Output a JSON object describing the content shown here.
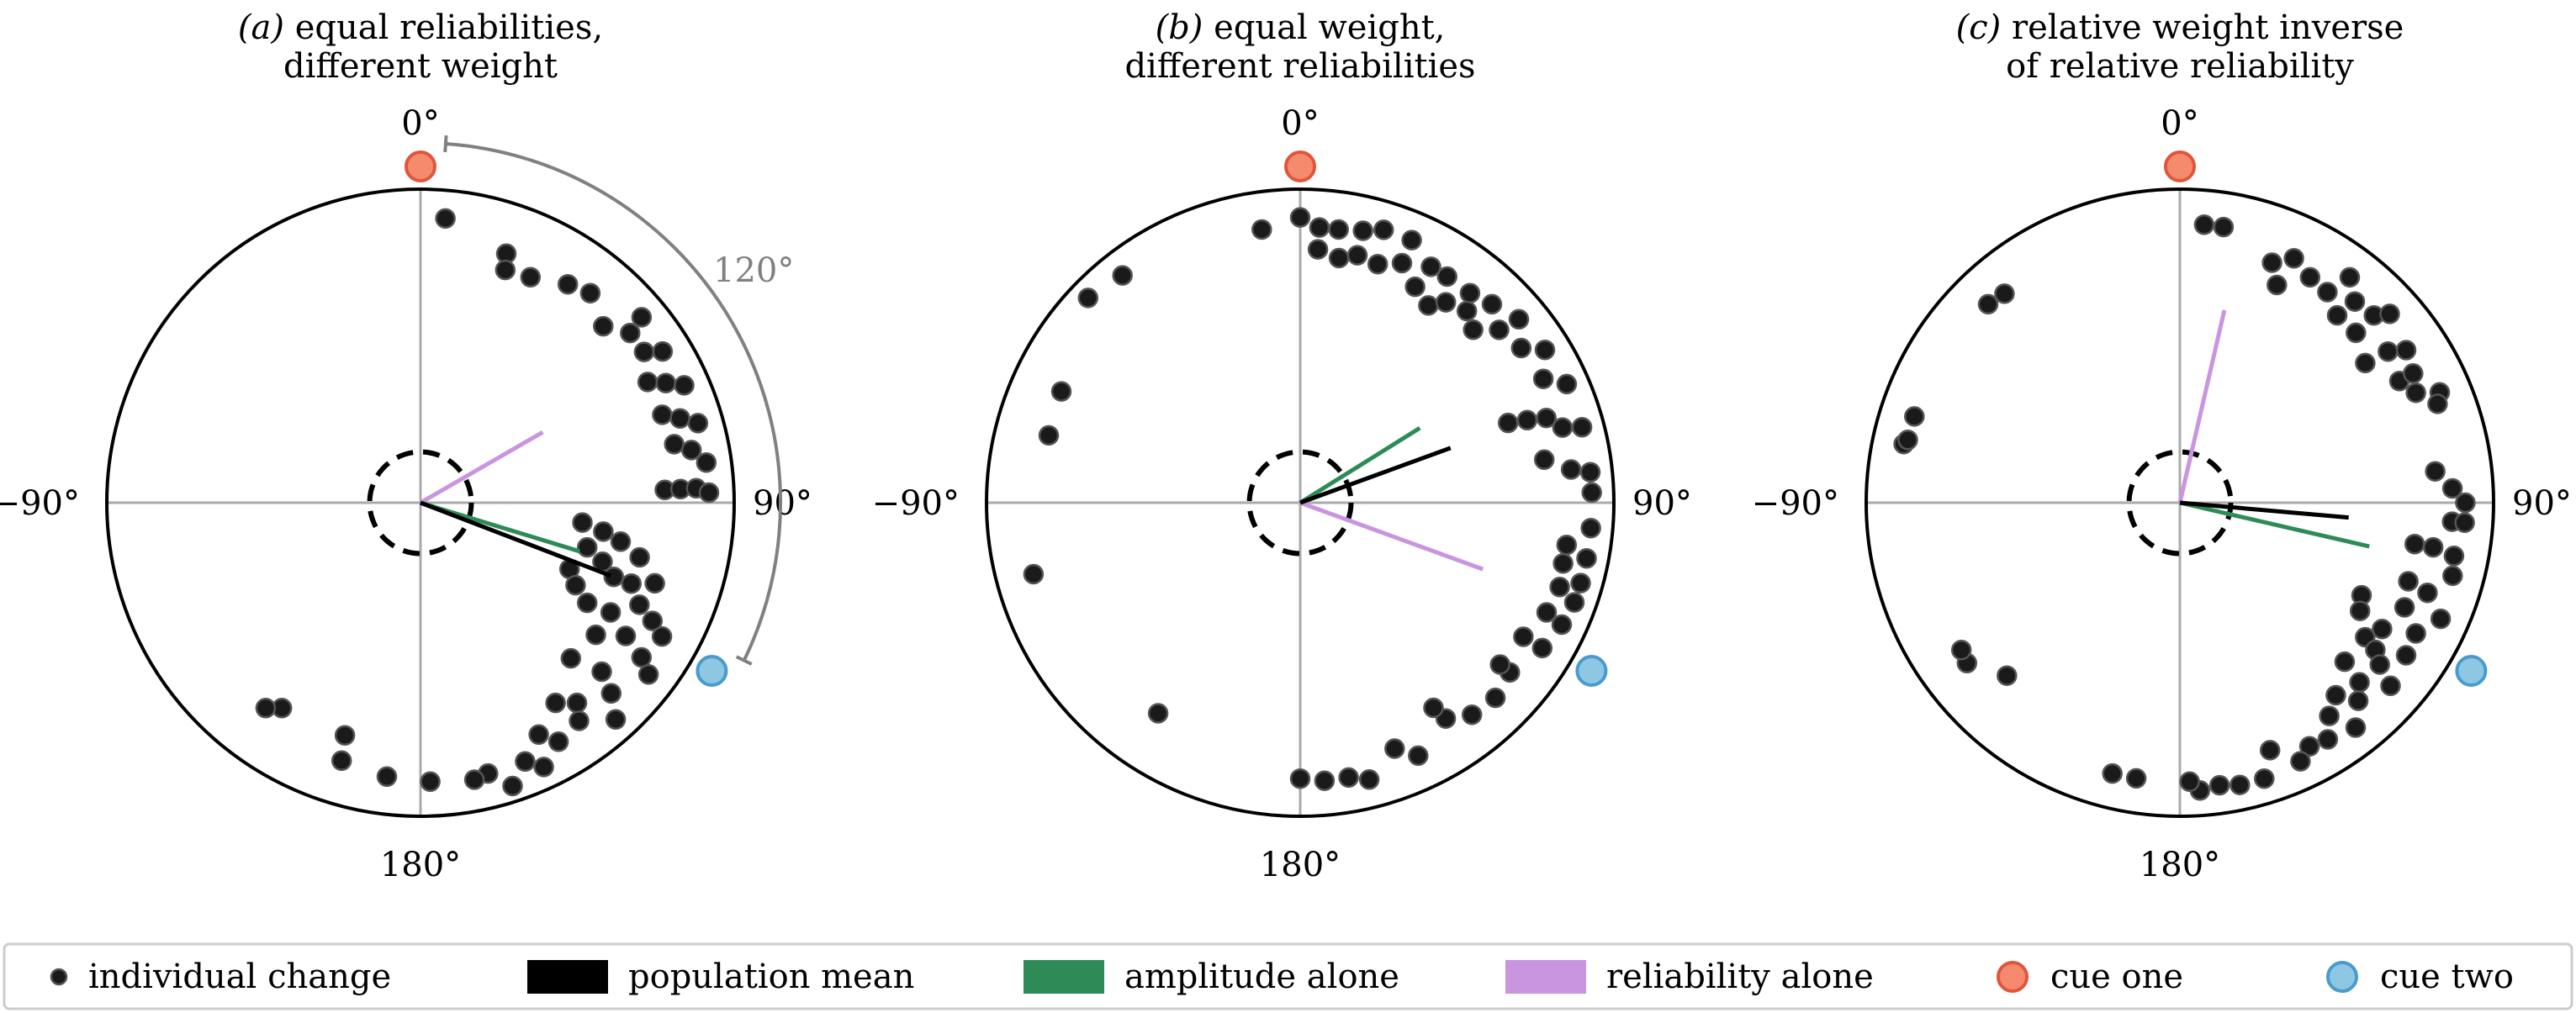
{
  "colors": {
    "dot": "#1a1a1a",
    "population_mean": "#000000",
    "amplitude_alone": "#2e8b57",
    "reliability_alone": "#c995e0",
    "cue_one_fill": "#f58a6f",
    "cue_one_edge": "#e0563b",
    "cue_two_fill": "#8ec7e3",
    "cue_two_edge": "#4a9bcb",
    "axis": "#aaaaaa",
    "circle": "#000000",
    "annotation": "#808080"
  },
  "legend": {
    "items": [
      {
        "key": "individual_change",
        "label": "individual change",
        "icon": "dot-icon"
      },
      {
        "key": "population_mean",
        "label": "population mean",
        "icon": "line-swatch"
      },
      {
        "key": "amplitude_alone",
        "label": "amplitude alone",
        "icon": "line-swatch"
      },
      {
        "key": "reliability_alone",
        "label": "reliability alone",
        "icon": "line-swatch"
      },
      {
        "key": "cue_one",
        "label": "cue one",
        "icon": "circle-icon"
      },
      {
        "key": "cue_two",
        "label": "cue two",
        "icon": "circle-icon"
      }
    ]
  },
  "chart_data": [
    {
      "type": "polar-scatter",
      "title_prefix": "(a)",
      "title_line1": "equal reliabilities,",
      "title_line2": "different weight",
      "tick_labels": {
        "top": "0°",
        "right": "90°",
        "bottom": "180°",
        "left": "−90°"
      },
      "cue_one_angle": 0,
      "cue_two_angle": 120,
      "annotation": {
        "label": "120°",
        "from_angle": 0,
        "to_angle": 120
      },
      "dashed_circle_radius": 0.15,
      "vectors": {
        "population_mean": {
          "angle": 111,
          "length": 0.65
        },
        "amplitude_alone": {
          "angle": 107,
          "length": 0.53
        },
        "reliability_alone": {
          "angle": 60,
          "length": 0.45
        }
      },
      "points": [
        [
          5,
          0.91
        ],
        [
          19,
          0.84
        ],
        [
          20,
          0.79
        ],
        [
          26,
          0.8
        ],
        [
          34,
          0.84
        ],
        [
          39,
          0.86
        ],
        [
          46,
          0.81
        ],
        [
          51,
          0.86
        ],
        [
          50,
          0.92
        ],
        [
          56,
          0.86
        ],
        [
          58,
          0.91
        ],
        [
          62,
          0.82
        ],
        [
          64,
          0.87
        ],
        [
          66,
          0.92
        ],
        [
          70,
          0.82
        ],
        [
          72,
          0.87
        ],
        [
          74,
          0.92
        ],
        [
          77,
          0.83
        ],
        [
          79,
          0.88
        ],
        [
          82,
          0.92
        ],
        [
          87,
          0.78
        ],
        [
          87,
          0.83
        ],
        [
          87,
          0.88
        ],
        [
          88,
          0.92
        ],
        [
          97,
          0.52
        ],
        [
          99,
          0.59
        ],
        [
          101,
          0.65
        ],
        [
          104,
          0.72
        ],
        [
          105,
          0.55
        ],
        [
          108,
          0.61
        ],
        [
          109,
          0.79
        ],
        [
          111,
          0.66
        ],
        [
          111,
          0.72
        ],
        [
          114,
          0.52
        ],
        [
          115,
          0.77
        ],
        [
          117,
          0.83
        ],
        [
          118,
          0.56
        ],
        [
          119,
          0.88
        ],
        [
          120,
          0.7
        ],
        [
          121,
          0.62
        ],
        [
          123,
          0.78
        ],
        [
          125,
          0.86
        ],
        [
          127,
          0.7
        ],
        [
          127,
          0.91
        ],
        [
          133,
          0.79
        ],
        [
          135,
          0.86
        ],
        [
          136,
          0.69
        ],
        [
          138,
          0.93
        ],
        [
          142,
          0.81
        ],
        [
          144,
          0.86
        ],
        [
          146,
          0.77
        ],
        [
          150,
          0.88
        ],
        [
          153,
          0.83
        ],
        [
          155,
          0.93
        ],
        [
          158,
          0.89
        ],
        [
          162,
          0.95
        ],
        [
          166,
          0.89
        ],
        [
          169,
          0.9
        ],
        [
          178,
          0.89
        ],
        [
          187,
          0.88
        ],
        [
          197,
          0.86
        ],
        [
          198,
          0.78
        ],
        [
          214,
          0.79
        ],
        [
          217,
          0.82
        ]
      ]
    },
    {
      "type": "polar-scatter",
      "title_prefix": "(b)",
      "title_line1": "equal weight,",
      "title_line2": "different reliabilities",
      "tick_labels": {
        "top": "0°",
        "right": "90°",
        "bottom": "180°",
        "left": "−90°"
      },
      "cue_one_angle": 0,
      "cue_two_angle": 120,
      "dashed_circle_radius": 0.15,
      "vectors": {
        "population_mean": {
          "angle": 70,
          "length": 0.51
        },
        "amplitude_alone": {
          "angle": 58,
          "length": 0.45
        },
        "reliability_alone": {
          "angle": 110,
          "length": 0.62
        }
      },
      "points": [
        [
          0,
          0.91
        ],
        [
          4,
          0.88
        ],
        [
          8,
          0.88
        ],
        [
          13,
          0.89
        ],
        [
          17,
          0.91
        ],
        [
          23,
          0.91
        ],
        [
          4,
          0.81
        ],
        [
          9,
          0.79
        ],
        [
          13,
          0.81
        ],
        [
          18,
          0.8
        ],
        [
          23,
          0.83
        ],
        [
          29,
          0.86
        ],
        [
          33,
          0.86
        ],
        [
          39,
          0.86
        ],
        [
          44,
          0.88
        ],
        [
          50,
          0.91
        ],
        [
          28,
          0.78
        ],
        [
          33,
          0.75
        ],
        [
          36,
          0.79
        ],
        [
          41,
          0.81
        ],
        [
          45,
          0.78
        ],
        [
          49,
          0.84
        ],
        [
          55,
          0.86
        ],
        [
          58,
          0.92
        ],
        [
          63,
          0.87
        ],
        [
          66,
          0.93
        ],
        [
          69,
          0.71
        ],
        [
          70,
          0.77
        ],
        [
          71,
          0.83
        ],
        [
          74,
          0.87
        ],
        [
          75,
          0.93
        ],
        [
          80,
          0.79
        ],
        [
          83,
          0.87
        ],
        [
          84,
          0.93
        ],
        [
          88,
          0.93
        ],
        [
          95,
          0.93
        ],
        [
          99,
          0.86
        ],
        [
          101,
          0.93
        ],
        [
          103,
          0.86
        ],
        [
          106,
          0.93
        ],
        [
          108,
          0.87
        ],
        [
          110,
          0.93
        ],
        [
          114,
          0.86
        ],
        [
          115,
          0.92
        ],
        [
          121,
          0.83
        ],
        [
          121,
          0.9
        ],
        [
          129,
          0.86
        ],
        [
          129,
          0.82
        ],
        [
          135,
          0.88
        ],
        [
          141,
          0.87
        ],
        [
          146,
          0.83
        ],
        [
          147,
          0.78
        ],
        [
          155,
          0.89
        ],
        [
          159,
          0.84
        ],
        [
          166,
          0.91
        ],
        [
          170,
          0.89
        ],
        [
          175,
          0.89
        ],
        [
          180,
          0.88
        ],
        [
          214,
          0.81
        ],
        [
          255,
          0.88
        ],
        [
          285,
          0.83
        ],
        [
          295,
          0.84
        ],
        [
          314,
          0.94
        ],
        [
          322,
          0.92
        ],
        [
          352,
          0.88
        ]
      ]
    },
    {
      "type": "polar-scatter",
      "title_prefix": "(c)",
      "title_line1": "relative weight inverse",
      "title_line2": "of relative reliability",
      "tick_labels": {
        "top": "0°",
        "right": "90°",
        "bottom": "180°",
        "left": "−90°"
      },
      "cue_one_angle": 0,
      "cue_two_angle": 120,
      "dashed_circle_radius": 0.15,
      "vectors": {
        "population_mean": {
          "angle": 95,
          "length": 0.54
        },
        "amplitude_alone": {
          "angle": 103,
          "length": 0.62
        },
        "reliability_alone": {
          "angle": 13,
          "length": 0.63
        }
      },
      "points": [
        [
          5,
          0.89
        ],
        [
          9,
          0.89
        ],
        [
          21,
          0.82
        ],
        [
          24,
          0.76
        ],
        [
          25,
          0.86
        ],
        [
          30,
          0.83
        ],
        [
          35,
          0.82
        ],
        [
          37,
          0.9
        ],
        [
          40,
          0.78
        ],
        [
          41,
          0.85
        ],
        [
          46,
          0.78
        ],
        [
          46,
          0.86
        ],
        [
          48,
          0.9
        ],
        [
          53,
          0.74
        ],
        [
          54,
          0.82
        ],
        [
          56,
          0.87
        ],
        [
          61,
          0.8
        ],
        [
          61,
          0.85
        ],
        [
          65,
          0.83
        ],
        [
          67,
          0.9
        ],
        [
          69,
          0.88
        ],
        [
          83,
          0.82
        ],
        [
          87,
          0.87
        ],
        [
          90,
          0.91
        ],
        [
          94,
          0.87
        ],
        [
          94,
          0.91
        ],
        [
          100,
          0.76
        ],
        [
          100,
          0.82
        ],
        [
          101,
          0.89
        ],
        [
          105,
          0.9
        ],
        [
          109,
          0.77
        ],
        [
          110,
          0.84
        ],
        [
          114,
          0.91
        ],
        [
          115,
          0.79
        ],
        [
          117,
          0.65
        ],
        [
          119,
          0.86
        ],
        [
          121,
          0.67
        ],
        [
          122,
          0.76
        ],
        [
          124,
          0.87
        ],
        [
          126,
          0.73
        ],
        [
          127,
          0.78
        ],
        [
          129,
          0.82
        ],
        [
          131,
          0.89
        ],
        [
          134,
          0.73
        ],
        [
          135,
          0.81
        ],
        [
          138,
          0.85
        ],
        [
          141,
          0.79
        ],
        [
          142,
          0.91
        ],
        [
          145,
          0.83
        ],
        [
          148,
          0.89
        ],
        [
          152,
          0.88
        ],
        [
          155,
          0.91
        ],
        [
          160,
          0.84
        ],
        [
          163,
          0.92
        ],
        [
          168,
          0.92
        ],
        [
          172,
          0.91
        ],
        [
          176,
          0.92
        ],
        [
          178,
          0.89
        ],
        [
          189,
          0.89
        ],
        [
          194,
          0.89
        ],
        [
          225,
          0.78
        ],
        [
          233,
          0.85
        ],
        [
          236,
          0.84
        ],
        [
          282,
          0.9
        ],
        [
          283,
          0.89
        ],
        [
          288,
          0.89
        ],
        [
          316,
          0.88
        ],
        [
          320,
          0.87
        ]
      ]
    }
  ]
}
